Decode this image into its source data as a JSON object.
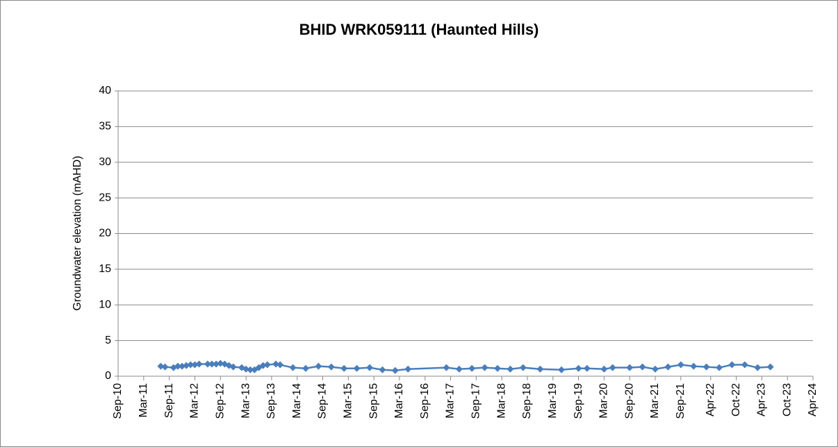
{
  "chart_data": {
    "type": "line",
    "title": "BHID WRK059111 (Haunted Hills)",
    "y_label": "Groundwater elevation (mAHD)",
    "color": "#4a7ebb",
    "grid": true,
    "x": [
      "2011-07",
      "2011-08",
      "2011-10",
      "2011-11",
      "2011-12",
      "2012-01",
      "2012-02",
      "2012-03",
      "2012-04",
      "2012-06",
      "2012-07",
      "2012-08",
      "2012-09",
      "2012-10",
      "2012-11",
      "2012-12",
      "2013-02",
      "2013-03",
      "2013-04",
      "2013-05",
      "2013-06",
      "2013-07",
      "2013-08",
      "2013-10",
      "2013-11",
      "2014-02",
      "2014-05",
      "2014-08",
      "2014-11",
      "2015-02",
      "2015-05",
      "2015-08",
      "2015-11",
      "2016-02",
      "2016-05",
      "2017-02",
      "2017-05",
      "2017-08",
      "2017-11",
      "2018-02",
      "2018-05",
      "2018-08",
      "2018-12",
      "2019-05",
      "2019-09",
      "2019-11",
      "2020-03",
      "2020-05",
      "2020-09",
      "2020-12",
      "2021-03",
      "2021-06",
      "2021-09",
      "2021-12",
      "2022-03",
      "2022-06",
      "2022-09",
      "2022-12",
      "2023-03",
      "2023-06"
    ],
    "values": [
      1.4,
      1.3,
      1.2,
      1.4,
      1.4,
      1.5,
      1.6,
      1.6,
      1.7,
      1.7,
      1.7,
      1.7,
      1.8,
      1.7,
      1.5,
      1.3,
      1.2,
      1.0,
      0.9,
      0.9,
      1.2,
      1.5,
      1.6,
      1.7,
      1.6,
      1.2,
      1.1,
      1.4,
      1.3,
      1.1,
      1.1,
      1.2,
      0.9,
      0.8,
      1.0,
      1.2,
      1.0,
      1.1,
      1.2,
      1.1,
      1.0,
      1.2,
      1.0,
      0.9,
      1.1,
      1.1,
      1.0,
      1.2,
      1.2,
      1.3,
      1.0,
      1.3,
      1.6,
      1.4,
      1.3,
      1.2,
      1.6,
      1.6,
      1.2,
      1.3
    ],
    "xlim": [
      "2010-09",
      "2024-04"
    ],
    "xticks": [
      {
        "value": "2010-09",
        "label": "Sep-10"
      },
      {
        "value": "2011-03",
        "label": "Mar-11"
      },
      {
        "value": "2011-09",
        "label": "Sep-11"
      },
      {
        "value": "2012-03",
        "label": "Mar-12"
      },
      {
        "value": "2012-09",
        "label": "Sep-12"
      },
      {
        "value": "2013-03",
        "label": "Mar-13"
      },
      {
        "value": "2013-09",
        "label": "Sep-13"
      },
      {
        "value": "2014-03",
        "label": "Mar-14"
      },
      {
        "value": "2014-09",
        "label": "Sep-14"
      },
      {
        "value": "2015-03",
        "label": "Mar-15"
      },
      {
        "value": "2015-09",
        "label": "Sep-15"
      },
      {
        "value": "2016-03",
        "label": "Mar-16"
      },
      {
        "value": "2016-09",
        "label": "Sep-16"
      },
      {
        "value": "2017-03",
        "label": "Mar-17"
      },
      {
        "value": "2017-09",
        "label": "Sep-17"
      },
      {
        "value": "2018-03",
        "label": "Mar-18"
      },
      {
        "value": "2018-09",
        "label": "Sep-18"
      },
      {
        "value": "2019-03",
        "label": "Mar-19"
      },
      {
        "value": "2019-09",
        "label": "Sep-19"
      },
      {
        "value": "2020-03",
        "label": "Mar-20"
      },
      {
        "value": "2020-09",
        "label": "Sep-20"
      },
      {
        "value": "2021-03",
        "label": "Mar-21"
      },
      {
        "value": "2021-09",
        "label": "Sep-21"
      },
      {
        "value": "2022-04",
        "label": "Apr-22"
      },
      {
        "value": "2022-10",
        "label": "Oct-22"
      },
      {
        "value": "2023-04",
        "label": "Apr-23"
      },
      {
        "value": "2023-10",
        "label": "Oct-23"
      },
      {
        "value": "2024-04",
        "label": "Apr-24"
      }
    ],
    "ylim": [
      0,
      40
    ],
    "yticks": [
      0,
      5,
      10,
      15,
      20,
      25,
      30,
      35,
      40
    ]
  }
}
